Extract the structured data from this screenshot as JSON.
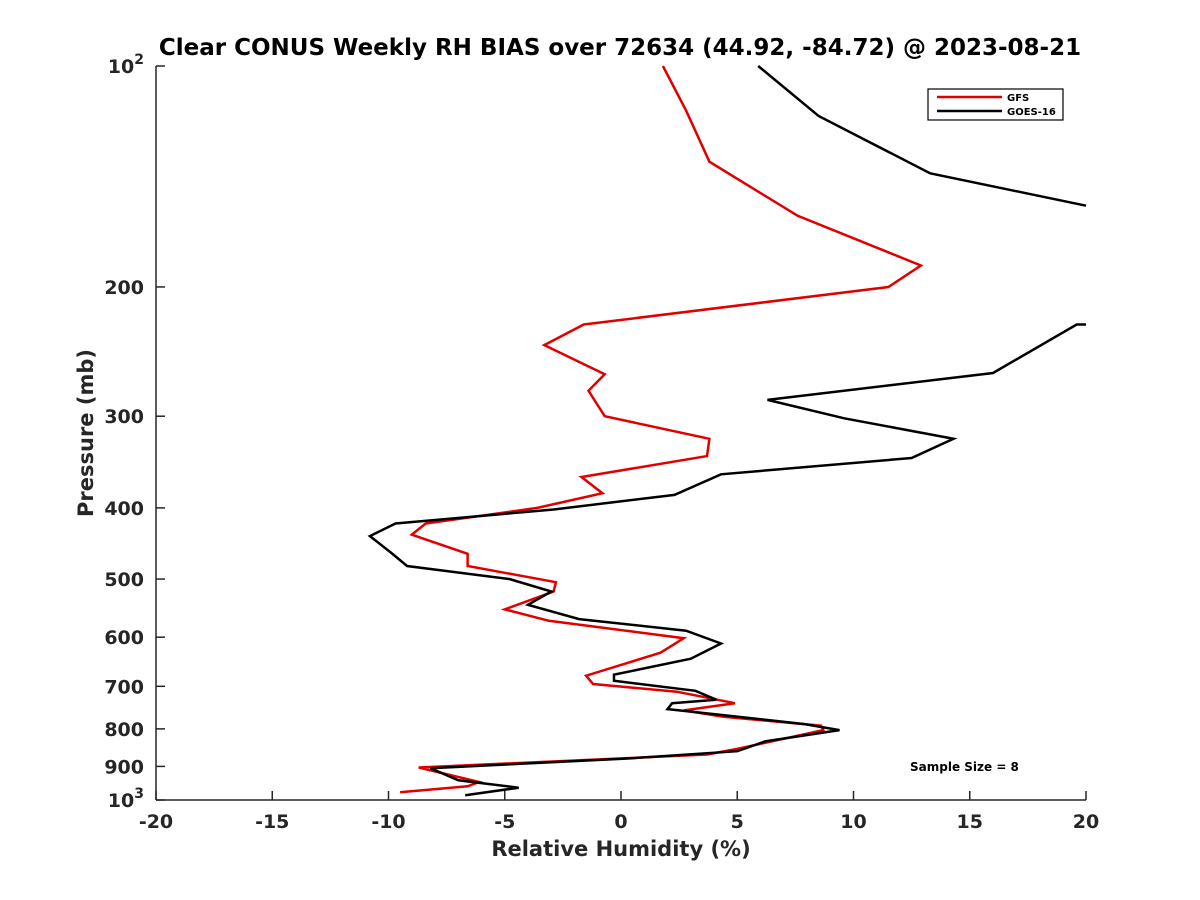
{
  "chart_data": {
    "type": "line",
    "title": "Clear CONUS Weekly RH BIAS over 72634 (44.92, -84.72) @ 2023-08-21",
    "xlabel": "Relative Humidity (%)",
    "ylabel": "Pressure (mb)",
    "xlim": [
      -20,
      20
    ],
    "ylim": [
      100,
      1000
    ],
    "yscale": "log",
    "y_reversed": true,
    "grid": false,
    "legend_position": "top-right",
    "x_ticks": [
      {
        "value": -20,
        "label": "-20"
      },
      {
        "value": -15,
        "label": "-15"
      },
      {
        "value": -10,
        "label": "-10"
      },
      {
        "value": -5,
        "label": "-5"
      },
      {
        "value": 0,
        "label": "0"
      },
      {
        "value": 5,
        "label": "5"
      },
      {
        "value": 10,
        "label": "10"
      },
      {
        "value": 15,
        "label": "15"
      },
      {
        "value": 20,
        "label": "20"
      }
    ],
    "y_ticks": [
      {
        "value": 100,
        "base": "10",
        "exp": "2"
      },
      {
        "value": 200,
        "base": "200",
        "exp": ""
      },
      {
        "value": 300,
        "base": "300",
        "exp": ""
      },
      {
        "value": 400,
        "base": "400",
        "exp": ""
      },
      {
        "value": 500,
        "base": "500",
        "exp": ""
      },
      {
        "value": 600,
        "base": "600",
        "exp": ""
      },
      {
        "value": 700,
        "base": "700",
        "exp": ""
      },
      {
        "value": 800,
        "base": "800",
        "exp": ""
      },
      {
        "value": 900,
        "base": "900",
        "exp": ""
      },
      {
        "value": 1000,
        "base": "10",
        "exp": "3"
      }
    ],
    "series": [
      {
        "name": "GFS",
        "color": "#e00000",
        "points": [
          [
            1.8,
            100
          ],
          [
            2.8,
            115
          ],
          [
            3.8,
            135
          ],
          [
            7.6,
            160
          ],
          [
            12.9,
            187
          ],
          [
            11.5,
            200
          ],
          [
            -1.6,
            225
          ],
          [
            -3.3,
            240
          ],
          [
            -0.7,
            263
          ],
          [
            -1.4,
            277
          ],
          [
            -0.7,
            300
          ],
          [
            3.8,
            322
          ],
          [
            3.7,
            340
          ],
          [
            -1.7,
            363
          ],
          [
            -0.8,
            382
          ],
          [
            -3.6,
            400
          ],
          [
            -8.4,
            420
          ],
          [
            -9.0,
            435
          ],
          [
            -6.6,
            462
          ],
          [
            -6.6,
            480
          ],
          [
            -2.8,
            505
          ],
          [
            -2.9,
            520
          ],
          [
            -5.0,
            550
          ],
          [
            -3.1,
            570
          ],
          [
            2.7,
            602
          ],
          [
            1.7,
            630
          ],
          [
            -1.5,
            677
          ],
          [
            -1.2,
            695
          ],
          [
            2.4,
            712
          ],
          [
            4.9,
            738
          ],
          [
            2.7,
            755
          ],
          [
            4.4,
            770
          ],
          [
            8.6,
            792
          ],
          [
            8.7,
            803
          ],
          [
            5.0,
            852
          ],
          [
            3.7,
            867
          ],
          [
            -8.7,
            903
          ],
          [
            -6.1,
            945
          ],
          [
            -6.6,
            958
          ],
          [
            -9.5,
            976
          ]
        ]
      },
      {
        "name": "GOES-16",
        "color": "#000000",
        "points": [
          [
            5.9,
            100
          ],
          [
            8.5,
            117
          ],
          [
            13.3,
            140
          ],
          [
            20.0,
            155
          ],
          [
            null,
            200
          ],
          [
            20.0,
            225
          ],
          [
            19.6,
            225
          ],
          [
            16.0,
            262
          ],
          [
            6.3,
            285
          ],
          [
            9.6,
            302
          ],
          [
            14.3,
            322
          ],
          [
            12.5,
            342
          ],
          [
            4.3,
            360
          ],
          [
            2.3,
            384
          ],
          [
            -2.9,
            402
          ],
          [
            -9.7,
            420
          ],
          [
            -10.8,
            437
          ],
          [
            -9.9,
            460
          ],
          [
            -9.2,
            480
          ],
          [
            -4.8,
            500
          ],
          [
            -3.0,
            520
          ],
          [
            -4.0,
            542
          ],
          [
            -1.8,
            567
          ],
          [
            2.8,
            588
          ],
          [
            4.3,
            612
          ],
          [
            3.0,
            642
          ],
          [
            -0.3,
            675
          ],
          [
            -0.3,
            688
          ],
          [
            3.2,
            710
          ],
          [
            4.1,
            730
          ],
          [
            2.2,
            738
          ],
          [
            2.0,
            752
          ],
          [
            4.2,
            765
          ],
          [
            7.9,
            788
          ],
          [
            9.4,
            803
          ],
          [
            6.2,
            832
          ],
          [
            5.0,
            858
          ],
          [
            0.3,
            878
          ],
          [
            -8.2,
            905
          ],
          [
            -7.0,
            940
          ],
          [
            -4.4,
            962
          ],
          [
            -6.7,
            985
          ]
        ]
      }
    ],
    "annotations": [
      {
        "text": "Sample Size = 8",
        "position": "bottom-right"
      }
    ]
  }
}
